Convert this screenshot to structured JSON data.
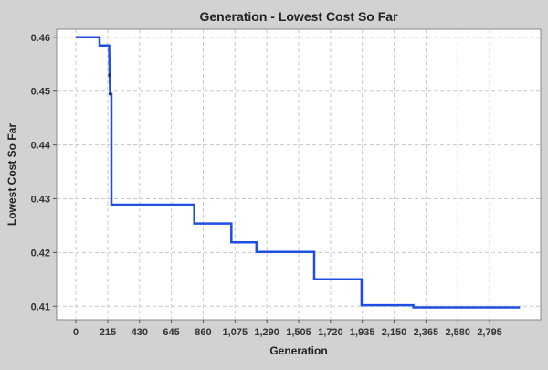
{
  "chart_data": {
    "type": "line",
    "title": "Generation - Lowest Cost So Far",
    "xlabel": "Generation",
    "ylabel": "Lowest Cost So Far",
    "xlim": [
      -130,
      3140
    ],
    "ylim": [
      0.4075,
      0.4615
    ],
    "x_ticks": [
      0,
      215,
      430,
      645,
      860,
      1075,
      1290,
      1505,
      1720,
      1935,
      2150,
      2365,
      2580,
      2795
    ],
    "x_tick_labels": [
      "0",
      "215",
      "430",
      "645",
      "860",
      "1,075",
      "1,290",
      "1,505",
      "1,720",
      "1,935",
      "2,150",
      "2,365",
      "2,580",
      "2,795"
    ],
    "y_ticks": [
      0.41,
      0.42,
      0.43,
      0.44,
      0.45,
      0.46
    ],
    "y_tick_labels": [
      "0.41",
      "0.42",
      "0.43",
      "0.44",
      "0.45",
      "0.46"
    ],
    "grid": true,
    "legend": "none",
    "series": [
      {
        "color": "#1f4fe0",
        "x": [
          0,
          160,
          160,
          225,
          228,
          232,
          240,
          240,
          800,
          800,
          1050,
          1050,
          1220,
          1220,
          1610,
          1610,
          1930,
          1930,
          2280,
          2280,
          3000
        ],
        "y": [
          0.46,
          0.46,
          0.4585,
          0.4585,
          0.453,
          0.4495,
          0.4495,
          0.4289,
          0.4289,
          0.4254,
          0.4254,
          0.4219,
          0.4219,
          0.4201,
          0.4201,
          0.415,
          0.415,
          0.4102,
          0.4102,
          0.4098,
          0.4098
        ],
        "markers": [
          {
            "x": 228,
            "y": 0.453
          },
          {
            "x": 232,
            "y": 0.4495
          }
        ]
      }
    ]
  },
  "colors": {
    "page_background": "#d2d2d2",
    "plot_background": "#ffffff",
    "gridline": "#c8c8c8",
    "series": "#1f4fe0"
  }
}
